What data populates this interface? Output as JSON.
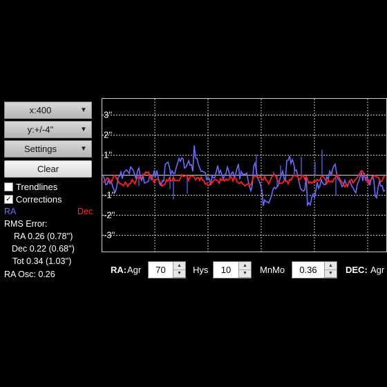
{
  "controls": {
    "x_scale": "x:400",
    "y_scale": "y:+/-4''",
    "settings": "Settings",
    "clear": "Clear"
  },
  "options": {
    "trendlines": {
      "label": "Trendlines",
      "checked": false
    },
    "corrections": {
      "label": "Corrections",
      "checked": true
    }
  },
  "legend": {
    "ra": "RA",
    "dec": "Dec",
    "ra_color": "#6b6bff",
    "dec_color": "#ff2020"
  },
  "stats": {
    "rms_title": "RMS Error:",
    "ra": "RA  0.26 (0.78'')",
    "dec": "Dec  0.22 (0.68'')",
    "tot": "Tot  0.34 (1.03'')",
    "ra_osc": "RA Osc: 0.26"
  },
  "graph": {
    "y_labels": [
      "3''",
      "2''",
      "1''",
      "-1''",
      "-2''",
      "-3''"
    ],
    "y_values": [
      3,
      2,
      1,
      -1,
      -2,
      -3
    ],
    "ymax": 4
  },
  "bottom": {
    "ra_label": "RA:",
    "agr_label": "Agr",
    "agr_value": "70",
    "hys_label": "Hys",
    "hys_value": "10",
    "mnmo_label": "MnMo",
    "mnmo_value": "0.36",
    "dec_label": "DEC:",
    "dec_agr_label": "Agr"
  }
}
